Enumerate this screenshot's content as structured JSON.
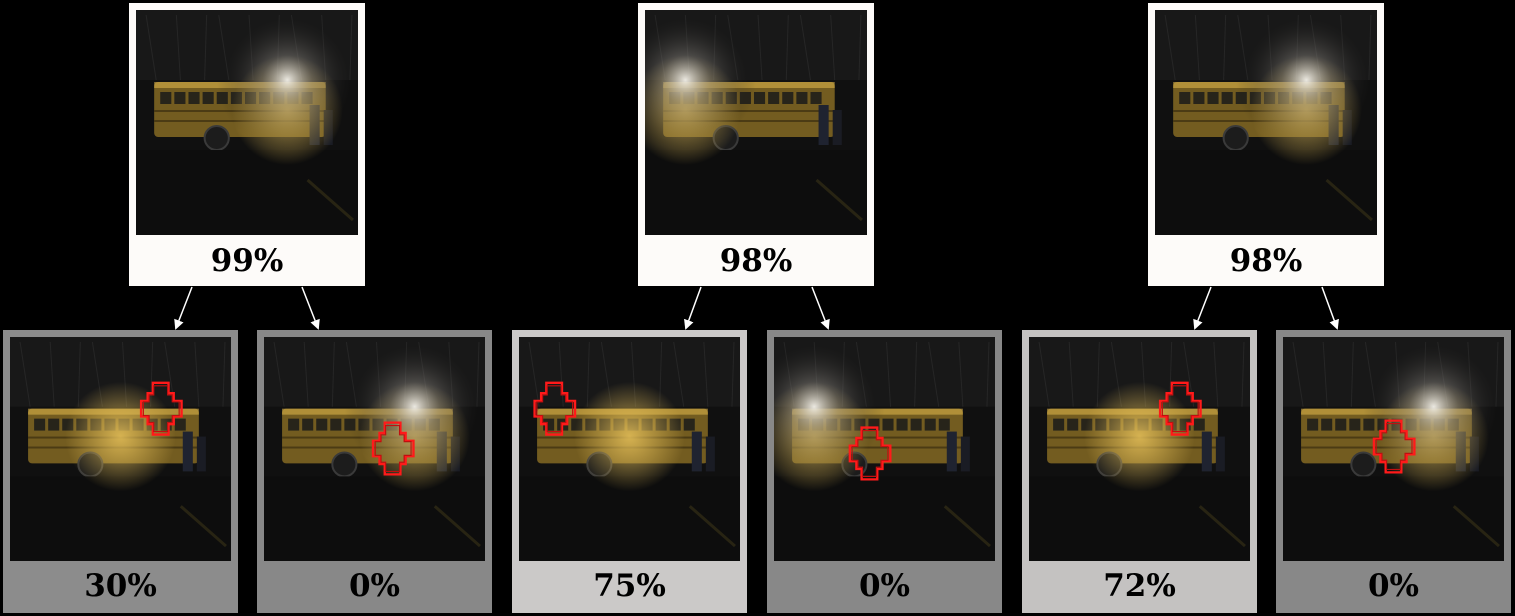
{
  "groups": [
    {
      "parent": {
        "label": "99%",
        "bg": "#fdfbf9",
        "light": "right"
      },
      "children": [
        {
          "label": "30%",
          "bg": "#8c8c8c",
          "light": "center"
        },
        {
          "label": "0%",
          "bg": "#888888",
          "light": "right"
        }
      ]
    },
    {
      "parent": {
        "label": "98%",
        "bg": "#fdfbf9",
        "light": "left"
      },
      "children": [
        {
          "label": "75%",
          "bg": "#cbc9c8",
          "light": "center"
        },
        {
          "label": "0%",
          "bg": "#888888",
          "light": "left"
        }
      ]
    },
    {
      "parent": {
        "label": "98%",
        "bg": "#fdfbf9",
        "light": "right"
      },
      "children": [
        {
          "label": "72%",
          "bg": "#c4c2c1",
          "light": "center"
        },
        {
          "label": "0%",
          "bg": "#888888",
          "light": "right"
        }
      ]
    }
  ],
  "colors": {
    "background": "#000000",
    "arrow": "#ffffff",
    "patch_outline": "#ff1a1a",
    "bus": "#c49a2e"
  }
}
